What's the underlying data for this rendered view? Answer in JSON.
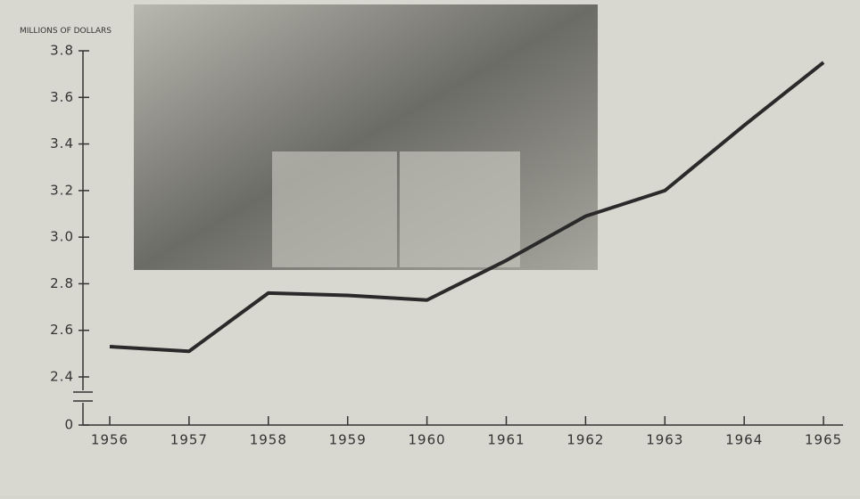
{
  "chart_data": {
    "type": "line",
    "y_axis_label": "MILLIONS OF DOLLARS",
    "categories": [
      "1956",
      "1957",
      "1958",
      "1959",
      "1960",
      "1961",
      "1962",
      "1963",
      "1964",
      "1965"
    ],
    "series": [
      {
        "color": "#2a2a2a",
        "values": [
          2.53,
          2.51,
          2.76,
          2.75,
          2.73,
          2.9,
          3.09,
          3.2,
          3.48,
          3.75
        ]
      }
    ],
    "ylim": [
      0,
      3.8
    ],
    "axis_break": [
      0,
      2.4
    ],
    "yticks": [
      0,
      {
        "value": 2.4,
        "label": "2.4"
      },
      {
        "value": 2.6,
        "label": "2.6"
      },
      {
        "value": 2.8,
        "label": "2.8"
      },
      {
        "value": 3.0,
        "label": "3.0"
      },
      {
        "value": 3.2,
        "label": "3.2"
      },
      {
        "value": 3.4,
        "label": "3.4"
      },
      {
        "value": 3.6,
        "label": "3.6"
      },
      {
        "value": 3.8,
        "label": "3.8"
      }
    ]
  }
}
